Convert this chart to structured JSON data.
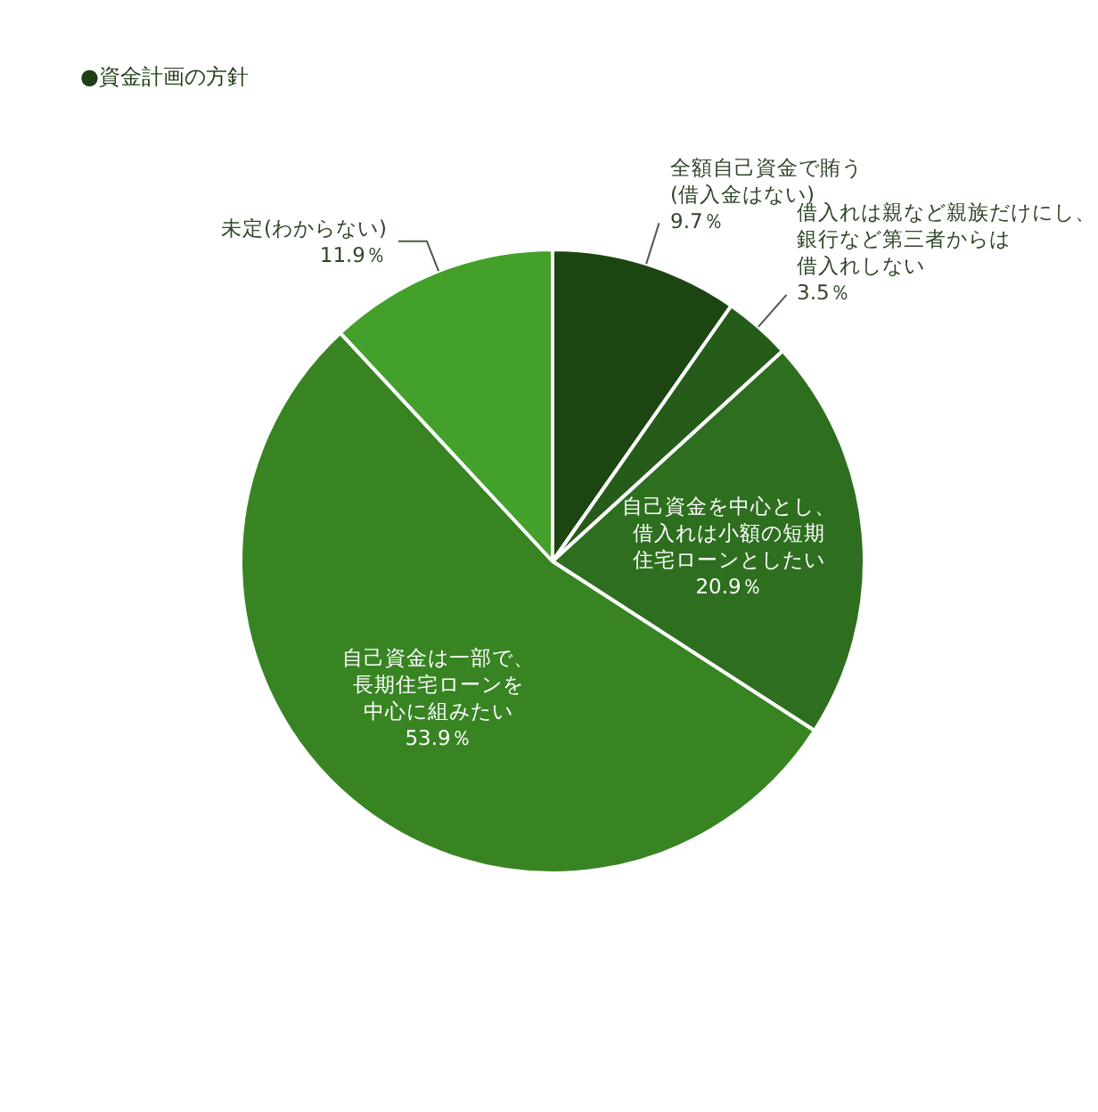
{
  "chart_data": {
    "type": "pie",
    "title": "●資金計画の方針",
    "categories": [
      "全額自己資金で賄う(借入金はない)",
      "借入れは親など親族だけにし、銀行など第三者からは借入れしない",
      "自己資金を中心とし、借入れは小額の短期住宅ローンとしたい",
      "自己資金は一部で、長期住宅ローンを中心に組みたい",
      "未定(わからない)"
    ],
    "values": [
      9.7,
      3.5,
      20.9,
      53.9,
      11.9
    ],
    "value_labels": [
      "9.7％",
      "3.5％",
      "20.9％",
      "53.9％",
      "11.9％"
    ],
    "colors": [
      "#1d4512",
      "#265c19",
      "#2e6f1f",
      "#388423",
      "#43a02b"
    ]
  }
}
